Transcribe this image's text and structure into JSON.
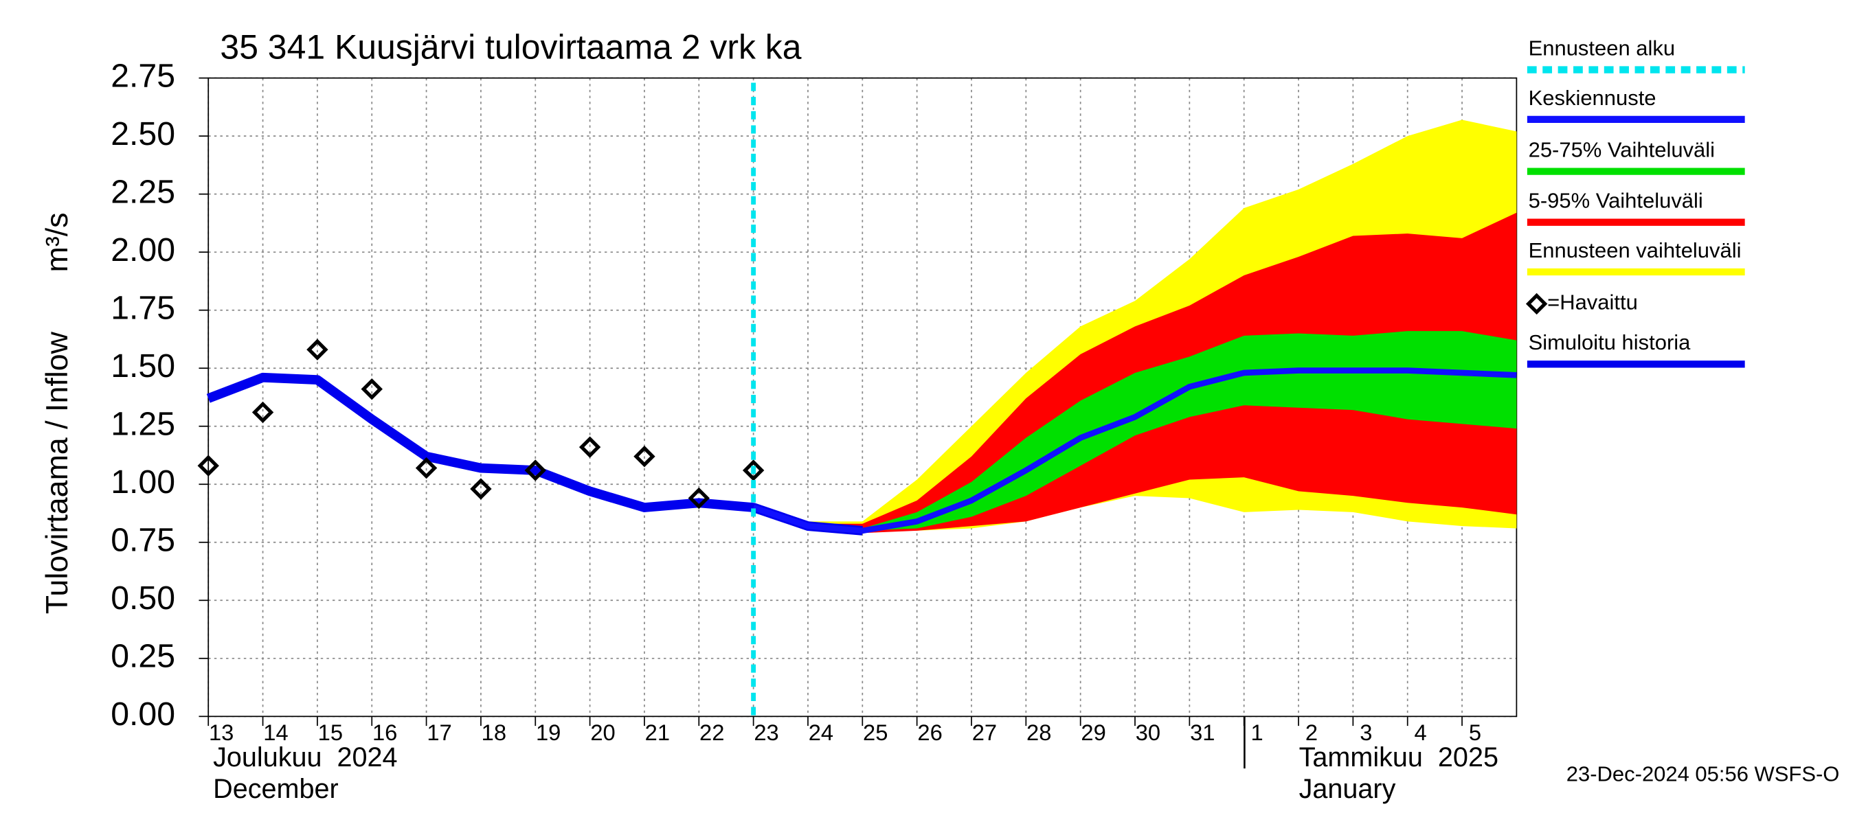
{
  "chart_data": {
    "type": "line",
    "title": "35 341 Kuusjärvi tulovirtaama 2 vrk ka",
    "y_label": "Tulovirtaama / Inflow",
    "y_unit": "m³/s",
    "footer": "23-Dec-2024 05:56 WSFS-O",
    "x_month_labels": [
      "Joulukuu  2024",
      "December",
      "Tammikuu  2025",
      "January"
    ],
    "x": [
      "2024-12-13",
      "2024-12-14",
      "2024-12-15",
      "2024-12-16",
      "2024-12-17",
      "2024-12-18",
      "2024-12-19",
      "2024-12-20",
      "2024-12-21",
      "2024-12-22",
      "2024-12-23",
      "2024-12-24",
      "2024-12-25",
      "2024-12-26",
      "2024-12-27",
      "2024-12-28",
      "2024-12-29",
      "2024-12-30",
      "2024-12-31",
      "2025-01-01",
      "2025-01-02",
      "2025-01-03",
      "2025-01-04",
      "2025-01-05",
      "2025-01-06"
    ],
    "xlim": [
      "2024-12-13",
      "2025-01-06"
    ],
    "xticks": [
      {
        "value": "2024-12-13",
        "label": "13"
      },
      {
        "value": "2024-12-14",
        "label": "14"
      },
      {
        "value": "2024-12-15",
        "label": "15"
      },
      {
        "value": "2024-12-16",
        "label": "16"
      },
      {
        "value": "2024-12-17",
        "label": "17"
      },
      {
        "value": "2024-12-18",
        "label": "18"
      },
      {
        "value": "2024-12-19",
        "label": "19"
      },
      {
        "value": "2024-12-20",
        "label": "20"
      },
      {
        "value": "2024-12-21",
        "label": "21"
      },
      {
        "value": "2024-12-22",
        "label": "22"
      },
      {
        "value": "2024-12-23",
        "label": "23"
      },
      {
        "value": "2024-12-24",
        "label": "24"
      },
      {
        "value": "2024-12-25",
        "label": "25"
      },
      {
        "value": "2024-12-26",
        "label": "26"
      },
      {
        "value": "2024-12-27",
        "label": "27"
      },
      {
        "value": "2024-12-28",
        "label": "28"
      },
      {
        "value": "2024-12-29",
        "label": "29"
      },
      {
        "value": "2024-12-30",
        "label": "30"
      },
      {
        "value": "2024-12-31",
        "label": "31"
      },
      {
        "value": "2025-01-01",
        "label": "1"
      },
      {
        "value": "2025-01-02",
        "label": "2"
      },
      {
        "value": "2025-01-03",
        "label": "3"
      },
      {
        "value": "2025-01-04",
        "label": "4"
      },
      {
        "value": "2025-01-05",
        "label": "5"
      }
    ],
    "ylim": [
      0,
      2.75
    ],
    "yticks": [
      {
        "value": 0,
        "label": "0.00"
      },
      {
        "value": 0.25,
        "label": "0.25"
      },
      {
        "value": 0.5,
        "label": "0.50"
      },
      {
        "value": 0.75,
        "label": "0.75"
      },
      {
        "value": 1,
        "label": "1.00"
      },
      {
        "value": 1.25,
        "label": "1.25"
      },
      {
        "value": 1.5,
        "label": "1.50"
      },
      {
        "value": 1.75,
        "label": "1.75"
      },
      {
        "value": 2,
        "label": "2.00"
      },
      {
        "value": 2.25,
        "label": "2.25"
      },
      {
        "value": 2.5,
        "label": "2.50"
      },
      {
        "value": 2.75,
        "label": "2.75"
      }
    ],
    "grid": true,
    "forecast_start": {
      "name": "Ennusteen alku",
      "x": "2024-12-23",
      "color": "#00e5ee"
    },
    "bands": [
      {
        "name": "Ennusteen vaihteluväli",
        "color": "#ffff00",
        "lower": [
          null,
          null,
          null,
          null,
          null,
          null,
          null,
          null,
          null,
          null,
          0.9,
          0.82,
          0.8,
          0.8,
          0.81,
          0.84,
          0.9,
          0.95,
          0.94,
          0.88,
          0.89,
          0.88,
          0.84,
          0.82,
          0.81
        ],
        "upper": [
          null,
          null,
          null,
          null,
          null,
          null,
          null,
          null,
          null,
          null,
          0.9,
          0.84,
          0.84,
          1.02,
          1.25,
          1.48,
          1.68,
          1.79,
          1.97,
          2.19,
          2.27,
          2.38,
          2.5,
          2.57,
          2.52
        ]
      },
      {
        "name": "5-95% Vaihteluväli",
        "color": "#ff0000",
        "lower": [
          null,
          null,
          null,
          null,
          null,
          null,
          null,
          null,
          null,
          null,
          0.9,
          0.82,
          0.79,
          0.8,
          0.82,
          0.84,
          0.9,
          0.96,
          1.02,
          1.03,
          0.97,
          0.95,
          0.92,
          0.9,
          0.87
        ],
        "upper": [
          null,
          null,
          null,
          null,
          null,
          null,
          null,
          null,
          null,
          null,
          0.9,
          0.83,
          0.83,
          0.93,
          1.12,
          1.37,
          1.56,
          1.68,
          1.77,
          1.9,
          1.98,
          2.07,
          2.08,
          2.06,
          2.17
        ]
      },
      {
        "name": "25-75% Vaihteluväli",
        "color": "#00e000",
        "lower": [
          null,
          null,
          null,
          null,
          null,
          null,
          null,
          null,
          null,
          null,
          0.9,
          0.82,
          0.8,
          0.81,
          0.86,
          0.95,
          1.08,
          1.21,
          1.29,
          1.34,
          1.33,
          1.32,
          1.28,
          1.26,
          1.24
        ],
        "upper": [
          null,
          null,
          null,
          null,
          null,
          null,
          null,
          null,
          null,
          null,
          0.9,
          0.82,
          0.81,
          0.88,
          1.01,
          1.2,
          1.36,
          1.48,
          1.55,
          1.64,
          1.65,
          1.64,
          1.66,
          1.66,
          1.62
        ]
      }
    ],
    "series": [
      {
        "name": "Simuloitu historia",
        "color": "#0000ee",
        "values": [
          1.37,
          1.46,
          1.45,
          1.28,
          1.12,
          1.07,
          1.06,
          0.97,
          0.9,
          0.92,
          0.9,
          0.82,
          0.8,
          null,
          null,
          null,
          null,
          null,
          null,
          null,
          null,
          null,
          null,
          null,
          null
        ]
      },
      {
        "name": "Keskiennuste",
        "color": "#1010ff",
        "values": [
          null,
          null,
          null,
          null,
          null,
          null,
          null,
          null,
          null,
          null,
          0.9,
          0.82,
          0.8,
          0.84,
          0.93,
          1.06,
          1.2,
          1.29,
          1.42,
          1.48,
          1.49,
          1.49,
          1.49,
          1.48,
          1.47
        ]
      },
      {
        "name": "=Havaittu",
        "color": "#000000",
        "values": [
          1.08,
          1.31,
          1.58,
          1.41,
          1.07,
          0.98,
          1.06,
          1.16,
          1.12,
          0.94,
          1.06,
          null,
          null,
          null,
          null,
          null,
          null,
          null,
          null,
          null,
          null,
          null,
          null,
          null,
          null
        ]
      }
    ]
  }
}
